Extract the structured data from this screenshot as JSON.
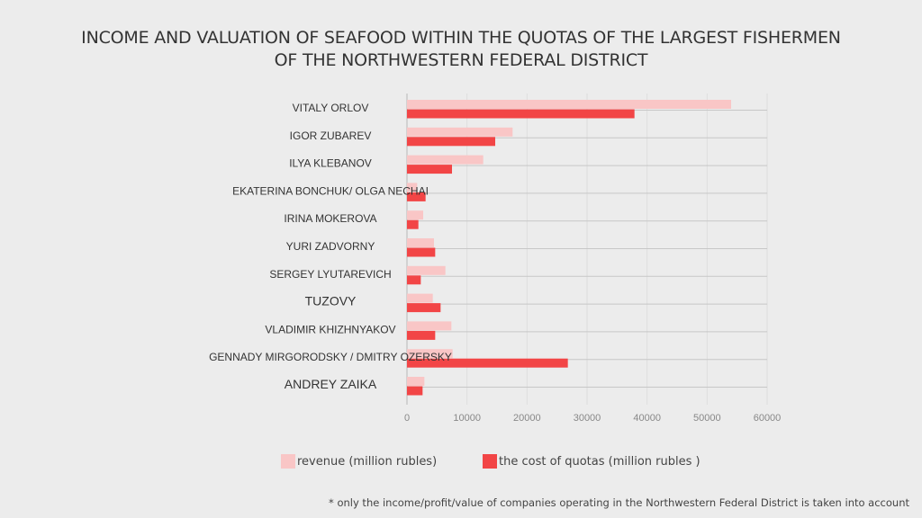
{
  "chart_data": {
    "type": "bar",
    "orientation": "horizontal",
    "title": [
      "INCOME AND VALUATION OF SEAFOOD WITHIN THE QUOTAS OF THE LARGEST FISHERMEN",
      "OF THE NORTHWESTERN FEDERAL DISTRICT"
    ],
    "categories": [
      "VITALY ORLOV",
      "IGOR ZUBAREV",
      "ILYA KLEBANOV",
      "EKATERINA BONCHUK/ OLGA NECHAI",
      "IRINA MOKEROVA",
      "YURI ZADVORNY",
      "SERGEY LYUTAREVICH",
      "TUZOVY",
      "VLADIMIR KHIZHNYAKOV",
      "GENNADY MIRGORODSKY / DMITRY OZERSKY",
      "ANDREY ZAIKA"
    ],
    "series": [
      {
        "name": "revenue (million rubles)",
        "color": "#f9c6c6",
        "values": [
          54000,
          17600,
          12700,
          1700,
          2700,
          4500,
          6400,
          4300,
          7400,
          7600,
          2900
        ]
      },
      {
        "name": "the cost of quotas (million rubles )",
        "color": "#f24546",
        "values": [
          37900,
          14700,
          7500,
          3100,
          1900,
          4700,
          2300,
          5600,
          4700,
          26800,
          2600
        ]
      }
    ],
    "xlim": [
      0,
      60000
    ],
    "xticks": [
      0,
      10000,
      20000,
      30000,
      40000,
      50000,
      60000
    ],
    "grid": true,
    "legend": "bottom"
  },
  "footnote": "* only the income/profit/value of companies operating in the Northwestern Federal District is taken into account"
}
